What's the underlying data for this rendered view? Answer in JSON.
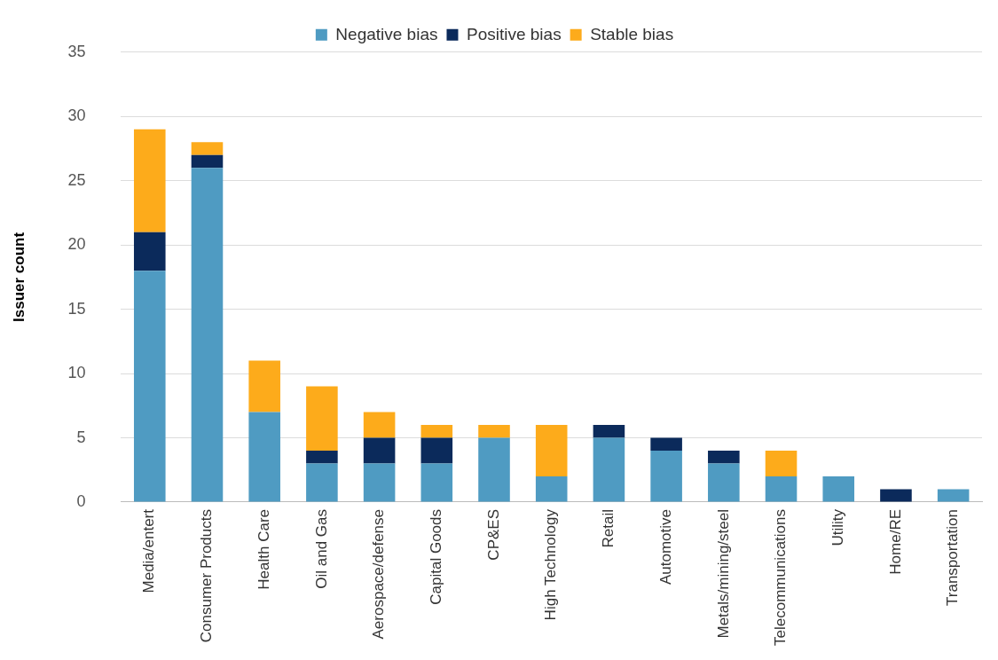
{
  "chart_data": {
    "type": "bar",
    "stacked": true,
    "ylabel": "Issuer count",
    "categories": [
      "Media/entert",
      "Consumer Products",
      "Health Care",
      "Oil and Gas",
      "Aerospace/defense",
      "Capital Goods",
      "CP&ES",
      "High Technology",
      "Retail",
      "Automotive",
      "Metals/mining/steel",
      "Telecommunications",
      "Utility",
      "Home/RE",
      "Transportation"
    ],
    "series": [
      {
        "name": "Negative bias",
        "color": "#4f9bc2",
        "values": [
          18,
          26,
          7,
          3,
          3,
          3,
          5,
          2,
          5,
          4,
          3,
          2,
          2,
          0,
          1
        ]
      },
      {
        "name": "Positive bias",
        "color": "#0b2a5b",
        "values": [
          3,
          1,
          0,
          1,
          2,
          2,
          0,
          0,
          1,
          1,
          1,
          0,
          0,
          1,
          0
        ]
      },
      {
        "name": "Stable bias",
        "color": "#fdab1b",
        "values": [
          8,
          1,
          4,
          5,
          2,
          1,
          1,
          4,
          0,
          0,
          0,
          2,
          0,
          0,
          0
        ]
      }
    ],
    "ylim": [
      0,
      35
    ],
    "yticks": [
      0,
      5,
      10,
      15,
      20,
      25,
      30,
      35
    ],
    "grid": "y",
    "legend": "top"
  }
}
